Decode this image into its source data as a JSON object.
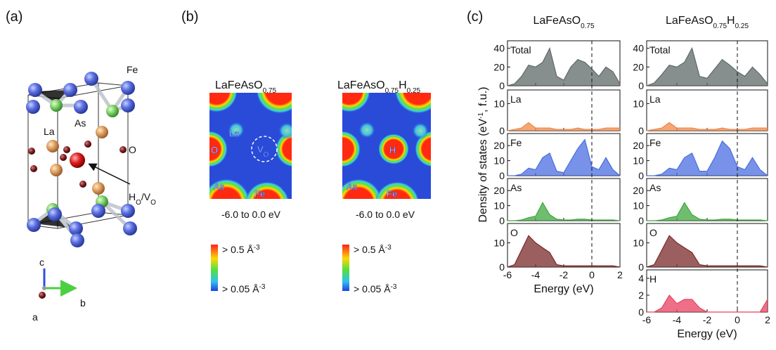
{
  "panel_labels": [
    "(a)",
    "(b)",
    "(c)"
  ],
  "panel_a": {
    "atoms": [
      "Fe",
      "As",
      "La",
      "O"
    ],
    "defect": [
      "H",
      "O",
      "/V",
      "O"
    ],
    "axes": [
      "c",
      "a",
      "b"
    ]
  },
  "panel_b": {
    "maps": [
      {
        "title": [
          "LaFeAsO",
          "0.75"
        ],
        "labels": [
          "La",
          "O",
          "As",
          "Fe"
        ],
        "vacancy": [
          "V",
          "O"
        ],
        "range": "-6.0 to 0.0 eV",
        "scale_max": [
          "> 0.5 Å",
          "-3"
        ],
        "scale_min": [
          "> 0.05 Å",
          "-3"
        ]
      },
      {
        "title": [
          "LaFeAsO",
          "0.75",
          "H",
          "0.25"
        ],
        "labels": [
          "H",
          "As",
          "Fe"
        ],
        "range": "-6.0 to 0.0 eV",
        "scale_max": [
          "> 0.5 Å",
          "-3"
        ],
        "scale_min": [
          "> 0.05 Å",
          "-3"
        ]
      }
    ]
  },
  "chart_data": [
    {
      "type": "area",
      "title": [
        "LaFeAsO",
        "0.75"
      ],
      "xlabel": "Energy (eV)",
      "ylabel": [
        "Density of states (eV",
        "-1",
        ", f.u.)"
      ],
      "x": [
        -6,
        -5.5,
        -5,
        -4.5,
        -4,
        -3.5,
        -3,
        -2.5,
        -2,
        -1.5,
        -1,
        -0.5,
        0,
        0.5,
        1,
        1.5,
        2
      ],
      "xlim": [
        -6,
        2
      ],
      "xticks": [
        -6,
        -4,
        -2,
        0,
        2
      ],
      "vline": 0,
      "series": [
        {
          "name": "Total",
          "color": "#5f6868",
          "ylim": [
            0,
            48
          ],
          "yticks": [
            0,
            20,
            40
          ],
          "values": [
            0,
            2,
            10,
            22,
            20,
            25,
            40,
            10,
            6,
            20,
            28,
            25,
            18,
            10,
            20,
            15,
            2
          ]
        },
        {
          "name": "La",
          "color": "#f08848",
          "ylim": [
            0,
            15
          ],
          "yticks": [
            0,
            10
          ],
          "values": [
            0,
            0.5,
            1,
            3,
            1,
            1,
            1,
            0.5,
            0.5,
            0.5,
            1,
            0.5,
            0.5,
            0.5,
            1,
            1,
            1
          ]
        },
        {
          "name": "Fe",
          "color": "#4a6ee0",
          "ylim": [
            0,
            28
          ],
          "yticks": [
            0,
            10,
            20
          ],
          "values": [
            0,
            0,
            1,
            5,
            4,
            12,
            15,
            3,
            2,
            10,
            18,
            24,
            6,
            4,
            12,
            4,
            0
          ]
        },
        {
          "name": "As",
          "color": "#3fa83f",
          "ylim": [
            0,
            28
          ],
          "yticks": [
            0,
            10,
            20
          ],
          "values": [
            0,
            0,
            0.5,
            2,
            3,
            12,
            4,
            1,
            0.5,
            0.5,
            1,
            1,
            0.5,
            0.5,
            0.5,
            0.5,
            0
          ]
        },
        {
          "name": "O",
          "color": "#7a2a2a",
          "ylim": [
            0,
            18
          ],
          "yticks": [
            0,
            10
          ],
          "values": [
            0,
            1,
            7,
            13,
            10,
            8,
            6,
            1,
            0.5,
            0.5,
            0.5,
            0.5,
            0.5,
            0.5,
            0.5,
            0.5,
            0
          ]
        }
      ]
    },
    {
      "type": "area",
      "title": [
        "LaFeAsO",
        "0.75",
        "H",
        "0.25"
      ],
      "xlabel": "Energy (eV)",
      "x": [
        -6,
        -5.5,
        -5,
        -4.5,
        -4,
        -3.5,
        -3,
        -2.5,
        -2,
        -1.5,
        -1,
        -0.5,
        0,
        0.5,
        1,
        1.5,
        2
      ],
      "xlim": [
        -6,
        2
      ],
      "xticks": [
        -6,
        -4,
        -2,
        0,
        2
      ],
      "vline": 0,
      "series": [
        {
          "name": "Total",
          "color": "#5f6868",
          "ylim": [
            0,
            48
          ],
          "yticks": [
            0,
            20,
            40
          ],
          "values": [
            0,
            3,
            12,
            22,
            20,
            25,
            40,
            10,
            8,
            18,
            28,
            22,
            15,
            10,
            20,
            12,
            2
          ]
        },
        {
          "name": "La",
          "color": "#f08848",
          "ylim": [
            0,
            15
          ],
          "yticks": [
            0,
            10
          ],
          "values": [
            0,
            0.5,
            1,
            3,
            1,
            1,
            1,
            0.5,
            0.5,
            0.5,
            1,
            0.5,
            0.5,
            0.5,
            1,
            1,
            1
          ]
        },
        {
          "name": "Fe",
          "color": "#4a6ee0",
          "ylim": [
            0,
            28
          ],
          "yticks": [
            0,
            10,
            20
          ],
          "values": [
            0,
            0,
            1,
            5,
            4,
            12,
            15,
            3,
            3,
            12,
            23,
            18,
            6,
            4,
            12,
            4,
            0
          ]
        },
        {
          "name": "As",
          "color": "#3fa83f",
          "ylim": [
            0,
            28
          ],
          "yticks": [
            0,
            10,
            20
          ],
          "values": [
            0,
            0,
            0.5,
            2,
            3,
            12,
            4,
            1,
            0.5,
            0.5,
            1,
            1,
            0.5,
            0.5,
            0.5,
            0.5,
            0
          ]
        },
        {
          "name": "O",
          "color": "#7a2a2a",
          "ylim": [
            0,
            18
          ],
          "yticks": [
            0,
            10
          ],
          "values": [
            0,
            1,
            7,
            13,
            10,
            8,
            6,
            1,
            0.5,
            0.5,
            0.5,
            0.5,
            0.5,
            0.5,
            0.5,
            0.5,
            0
          ]
        },
        {
          "name": "H",
          "color": "#e84060",
          "ylim": [
            0,
            5
          ],
          "yticks": [
            0,
            2,
            4
          ],
          "values": [
            0,
            0,
            0.5,
            2,
            1,
            1.5,
            1.5,
            0.5,
            0,
            0,
            0,
            0,
            0,
            0,
            0,
            0,
            1.5
          ]
        }
      ]
    }
  ]
}
